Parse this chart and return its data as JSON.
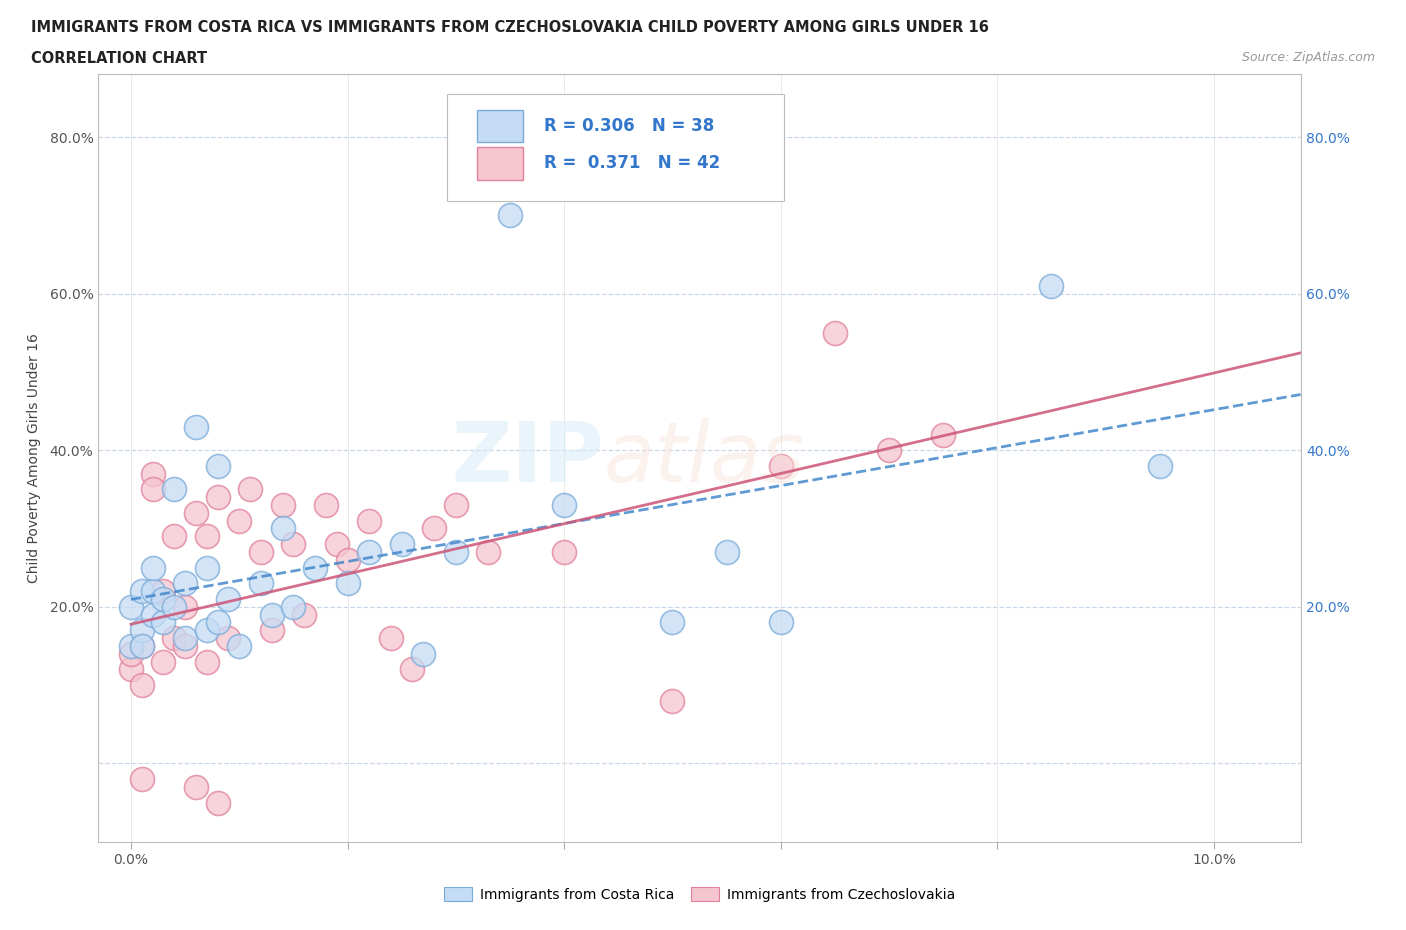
{
  "title_line1": "IMMIGRANTS FROM COSTA RICA VS IMMIGRANTS FROM CZECHOSLOVAKIA CHILD POVERTY AMONG GIRLS UNDER 16",
  "title_line2": "CORRELATION CHART",
  "source": "Source: ZipAtlas.com",
  "ylabel": "Child Poverty Among Girls Under 16",
  "x_ticks": [
    0.0,
    0.02,
    0.04,
    0.06,
    0.08,
    0.1
  ],
  "x_tick_labels": [
    "0.0%",
    "",
    "",
    "",
    "",
    "10.0%"
  ],
  "y_ticks": [
    0.0,
    0.2,
    0.4,
    0.6,
    0.8
  ],
  "y_tick_labels": [
    "",
    "20.0%",
    "40.0%",
    "60.0%",
    "80.0%"
  ],
  "xlim": [
    -0.003,
    0.108
  ],
  "ylim": [
    -0.1,
    0.88
  ],
  "costa_rica_color": "#c5dcf5",
  "costa_rica_edge": "#7aaad8",
  "czechoslovakia_color": "#f5c5d0",
  "czechoslovakia_edge": "#e0809a",
  "costa_rica_R": 0.306,
  "costa_rica_N": 38,
  "czechoslovakia_R": 0.371,
  "czechoslovakia_N": 42,
  "legend_label1": "Immigrants from Costa Rica",
  "legend_label2": "Immigrants from Czechoslovakia",
  "costa_rica_scatter_x": [
    0.0,
    0.0,
    0.001,
    0.001,
    0.001,
    0.002,
    0.002,
    0.002,
    0.003,
    0.003,
    0.004,
    0.004,
    0.005,
    0.005,
    0.006,
    0.007,
    0.007,
    0.008,
    0.008,
    0.009,
    0.01,
    0.012,
    0.013,
    0.014,
    0.015,
    0.017,
    0.02,
    0.022,
    0.025,
    0.027,
    0.03,
    0.035,
    0.04,
    0.05,
    0.055,
    0.06,
    0.085,
    0.095
  ],
  "costa_rica_scatter_y": [
    0.15,
    0.2,
    0.17,
    0.22,
    0.15,
    0.19,
    0.22,
    0.25,
    0.18,
    0.21,
    0.2,
    0.35,
    0.16,
    0.23,
    0.43,
    0.17,
    0.25,
    0.18,
    0.38,
    0.21,
    0.15,
    0.23,
    0.19,
    0.3,
    0.2,
    0.25,
    0.23,
    0.27,
    0.28,
    0.14,
    0.27,
    0.7,
    0.33,
    0.18,
    0.27,
    0.18,
    0.61,
    0.38
  ],
  "czechoslovakia_scatter_x": [
    0.0,
    0.0,
    0.001,
    0.001,
    0.001,
    0.002,
    0.002,
    0.003,
    0.003,
    0.004,
    0.004,
    0.005,
    0.005,
    0.006,
    0.006,
    0.007,
    0.007,
    0.008,
    0.008,
    0.009,
    0.01,
    0.011,
    0.012,
    0.013,
    0.014,
    0.015,
    0.016,
    0.018,
    0.019,
    0.02,
    0.022,
    0.024,
    0.026,
    0.028,
    0.03,
    0.033,
    0.04,
    0.05,
    0.06,
    0.065,
    0.07,
    0.075
  ],
  "czechoslovakia_scatter_y": [
    0.12,
    0.14,
    0.1,
    0.15,
    -0.02,
    0.37,
    0.35,
    0.13,
    0.22,
    0.16,
    0.29,
    0.15,
    0.2,
    0.32,
    -0.03,
    0.13,
    0.29,
    0.34,
    -0.05,
    0.16,
    0.31,
    0.35,
    0.27,
    0.17,
    0.33,
    0.28,
    0.19,
    0.33,
    0.28,
    0.26,
    0.31,
    0.16,
    0.12,
    0.3,
    0.33,
    0.27,
    0.27,
    0.08,
    0.38,
    0.55,
    0.4,
    0.42
  ],
  "trendline_color_cr": "#4488cc",
  "trendline_color_cz": "#cc5577",
  "grid_color": "#c8d8e8",
  "background_color": "#ffffff",
  "title_color": "#222222",
  "stat_color": "#3377cc",
  "marker_size": 300,
  "marker_linewidth": 1.2
}
